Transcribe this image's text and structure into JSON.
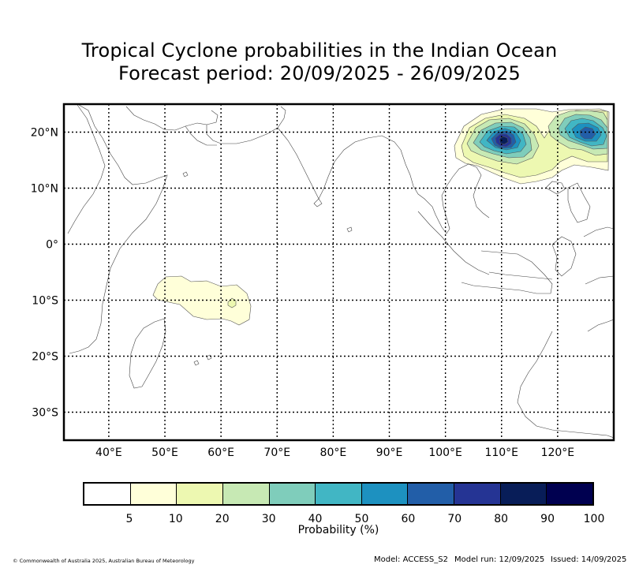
{
  "title_line1": "Tropical Cyclone probabilities in the Indian Ocean",
  "title_line2": "Forecast period: 20/09/2025 - 26/09/2025",
  "map": {
    "lon_ticks": [
      "40°E",
      "50°E",
      "60°E",
      "70°E",
      "80°E",
      "90°E",
      "100°E",
      "110°E",
      "120°E"
    ],
    "lat_ticks": [
      "20°N",
      "10°N",
      "0°",
      "10°S",
      "20°S",
      "30°S"
    ],
    "lon_values": [
      40,
      50,
      60,
      70,
      80,
      90,
      100,
      110,
      120
    ],
    "lat_values": [
      20,
      10,
      0,
      -10,
      -20,
      -30
    ],
    "lon_range": [
      32,
      130
    ],
    "lat_range": [
      -35,
      25
    ],
    "probability_regions": [
      {
        "region": "South China Sea / Philippine Sea",
        "max_probability": 90
      },
      {
        "region": "Southwest Indian Ocean",
        "max_probability": 10
      }
    ]
  },
  "colorbar": {
    "colors": [
      "#ffffff",
      "#ffffd9",
      "#edf8b1",
      "#c7e9b4",
      "#7fcdbb",
      "#41b6c4",
      "#1d91c0",
      "#225ea8",
      "#253494",
      "#081d58",
      "#000050"
    ],
    "ticks": [
      "5",
      "10",
      "20",
      "30",
      "40",
      "50",
      "60",
      "70",
      "80",
      "90",
      "100"
    ],
    "label": "Probability (%)"
  },
  "footer": {
    "copyright": "© Commonwealth of Australia 2025, Australian Bureau of Meteorology",
    "model": "Model: ACCESS_S2",
    "model_run": "Model run: 12/09/2025",
    "issued": "Issued: 14/09/2025"
  }
}
